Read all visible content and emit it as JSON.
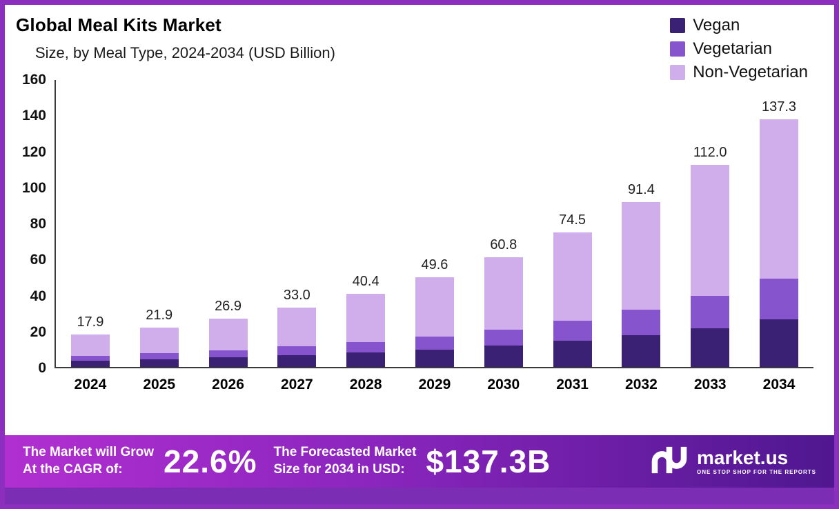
{
  "header": {
    "title": "Global Meal Kits Market",
    "subtitle": "Size, by Meal Type, 2024-2034 (USD Billion)"
  },
  "chart_data": {
    "type": "bar",
    "stacked": true,
    "title": "Global Meal Kits Market Size, by Meal Type, 2024-2034 (USD Billion)",
    "categories": [
      "2024",
      "2025",
      "2026",
      "2027",
      "2028",
      "2029",
      "2030",
      "2031",
      "2032",
      "2033",
      "2034"
    ],
    "series": [
      {
        "name": "Vegan",
        "color": "#3b2173",
        "values": [
          3.5,
          4.4,
          5.2,
          6.4,
          7.9,
          9.6,
          11.8,
          14.5,
          17.6,
          21.4,
          26.5
        ]
      },
      {
        "name": "Vegetarian",
        "color": "#8655cd",
        "values": [
          2.7,
          3.3,
          4.0,
          4.9,
          6.0,
          7.4,
          9.0,
          11.1,
          14.1,
          18.0,
          22.5
        ]
      },
      {
        "name": "Non-Vegetarian",
        "color": "#cfaeeb",
        "values": [
          11.7,
          14.2,
          17.7,
          21.7,
          26.5,
          32.6,
          40.0,
          48.9,
          59.7,
          72.6,
          88.3
        ]
      }
    ],
    "totals": [
      17.9,
      21.9,
      26.9,
      33.0,
      40.4,
      49.6,
      60.8,
      74.5,
      91.4,
      112.0,
      137.3
    ],
    "total_labels": [
      "17.9",
      "21.9",
      "26.9",
      "33.0",
      "40.4",
      "49.6",
      "60.8",
      "74.5",
      "91.4",
      "112.0",
      "137.3"
    ],
    "ylim": [
      0,
      160
    ],
    "yticks": [
      0,
      20,
      40,
      60,
      80,
      100,
      120,
      140,
      160
    ],
    "xlabel": "",
    "ylabel": "",
    "grid": false,
    "legend_position": "top-right"
  },
  "footer": {
    "cagr_label_line1": "The Market will Grow",
    "cagr_label_line2": "At the CAGR of:",
    "cagr_value": "22.6%",
    "forecast_label_line1": "The Forecasted Market",
    "forecast_label_line2": "Size for 2034 in USD:",
    "forecast_value": "$137.3B",
    "brand": "market.us",
    "brand_tagline": "ONE STOP SHOP FOR THE REPORTS"
  },
  "colors": {
    "border": "#8c2fbe",
    "banner_gradient_start": "#b12fd0",
    "banner_gradient_end": "#4f1790",
    "bottom_strip": "#7b2db4"
  }
}
